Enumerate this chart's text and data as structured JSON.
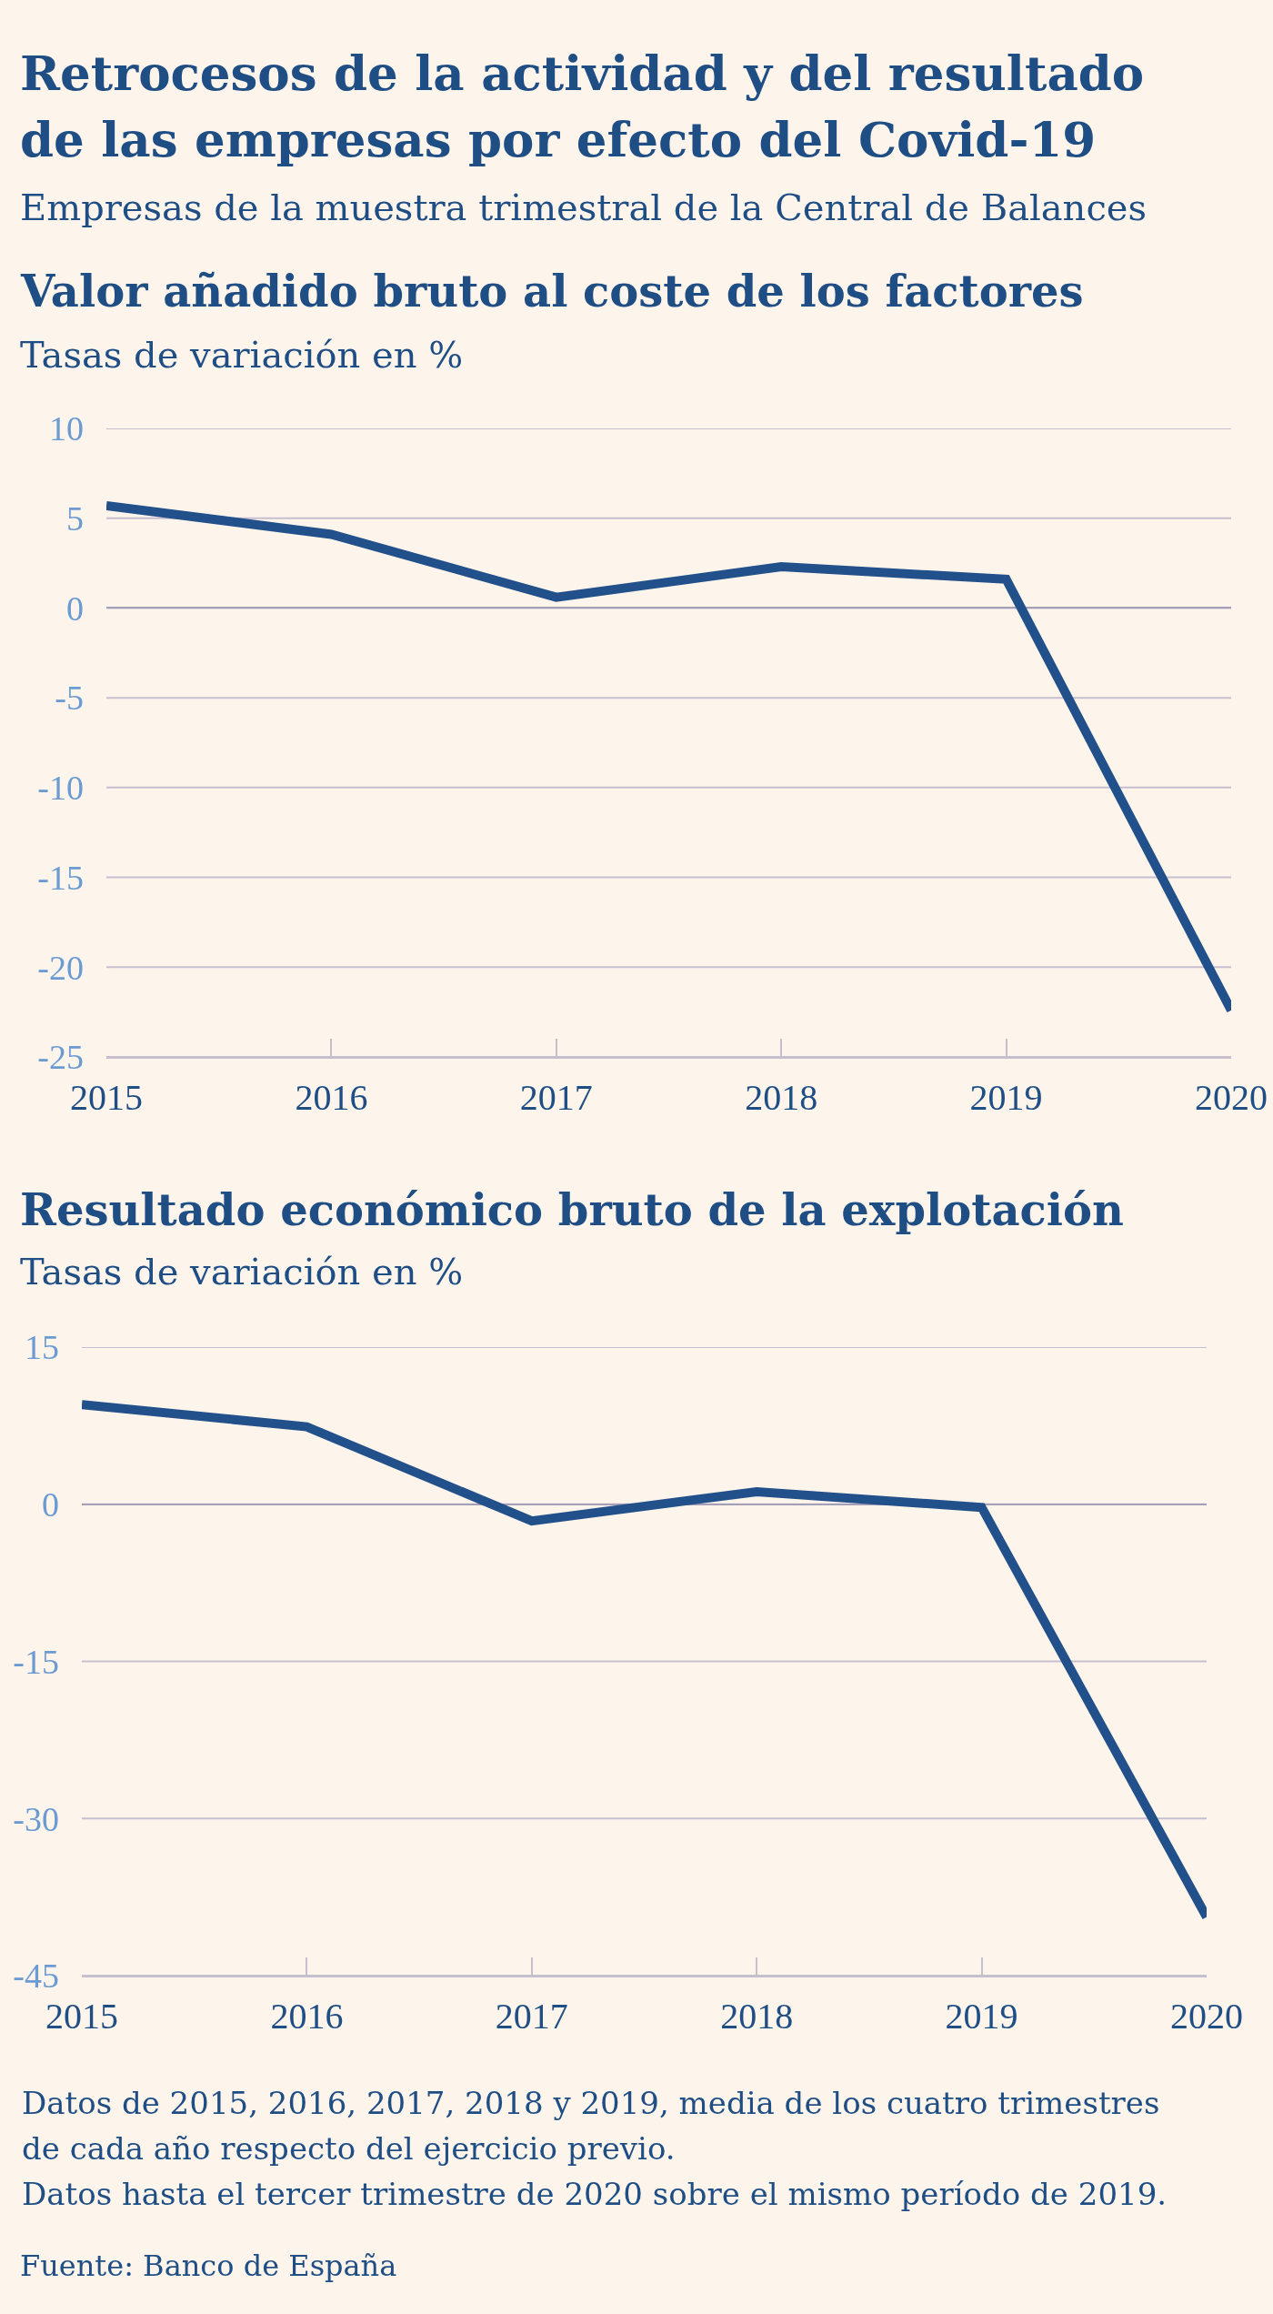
{
  "chart_data": [
    {
      "type": "other",
      "title": "Retrocesos de la actividad y del resultado de las empresas por efecto del Covid-19",
      "subtitle": "Empresas de la muestra trimestral de la Central de Balances"
    },
    {
      "type": "line",
      "title": "Valor añadido bruto al coste de los factores",
      "ylabel": "Tasas de variación en %",
      "x": [
        2015,
        2016,
        2017,
        2018,
        2019,
        2020
      ],
      "series": [
        {
          "color": "#21508a",
          "values": [
            5.7,
            4.1,
            0.6,
            2.3,
            1.6,
            -22.4
          ]
        }
      ],
      "xlim": [
        2015,
        2020
      ],
      "xticks": [
        2015,
        2016,
        2017,
        2018,
        2019,
        2020
      ],
      "ylim": [
        -25,
        10
      ],
      "yticks": [
        -25,
        -20,
        -15,
        -10,
        -5,
        0,
        5,
        10
      ],
      "grid": "y"
    },
    {
      "type": "line",
      "title": "Resultado económico bruto de la explotación",
      "ylabel": "Tasas de variación en %",
      "x": [
        2015,
        2016,
        2017,
        2018,
        2019,
        2020
      ],
      "series": [
        {
          "color": "#21508a",
          "values": [
            9.5,
            7.4,
            -1.6,
            1.2,
            -0.3,
            -39.4
          ]
        }
      ],
      "xlim": [
        2015,
        2020
      ],
      "xticks": [
        2015,
        2016,
        2017,
        2018,
        2019,
        2020
      ],
      "ylim": [
        -45,
        15
      ],
      "yticks": [
        -45,
        -30,
        -15,
        0,
        15
      ],
      "grid": "y",
      "annotations": [
        "Datos de 2015, 2016, 2017, 2018 y 2019, media de los cuatro trimestres de cada año respecto del ejercicio previo.",
        "Datos hasta el tercer trimestre de 2020 sobre el mismo período de 2019.",
        "Fuente: Banco de España"
      ]
    }
  ]
}
